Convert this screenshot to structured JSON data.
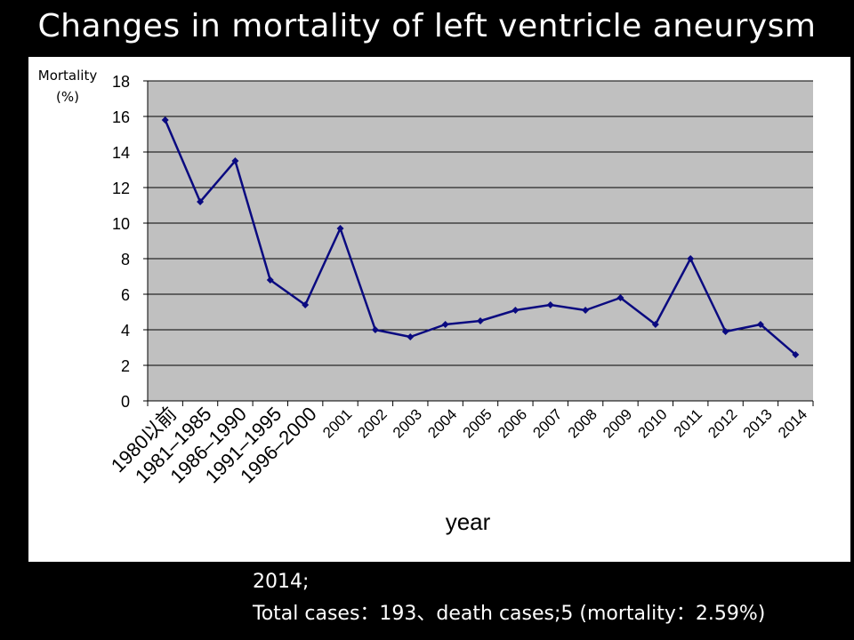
{
  "slide": {
    "title": "Changes in mortality of left ventricle aneurysm",
    "note_line1": "2014;",
    "note_line2": "Total cases：193、death cases;5 (mortality：2.59%)"
  },
  "chart_data": {
    "type": "line",
    "title": "",
    "ylabel_line1": "Mortality",
    "ylabel_line2": "(%)",
    "xlabel": "year",
    "ylim": [
      0,
      18
    ],
    "yticks": [
      0,
      2,
      4,
      6,
      8,
      10,
      12,
      14,
      16,
      18
    ],
    "grid": true,
    "legend": "none",
    "categories": [
      "1980以前",
      "1981–1985",
      "1986–1990",
      "1991–1995",
      "1996–2000",
      "2001",
      "2002",
      "2003",
      "2004",
      "2005",
      "2006",
      "2007",
      "2008",
      "2009",
      "2010",
      "2011",
      "2012",
      "2013",
      "2014"
    ],
    "series": [
      {
        "values": [
          15.8,
          11.2,
          13.5,
          6.8,
          5.4,
          9.7,
          4.0,
          3.6,
          4.3,
          4.5,
          5.1,
          5.4,
          5.1,
          5.8,
          4.3,
          8.0,
          3.9,
          4.3,
          2.6
        ],
        "color": "#0a0a80"
      }
    ],
    "plot_background": "#c0c0c0",
    "gridline_color": "#000000"
  }
}
